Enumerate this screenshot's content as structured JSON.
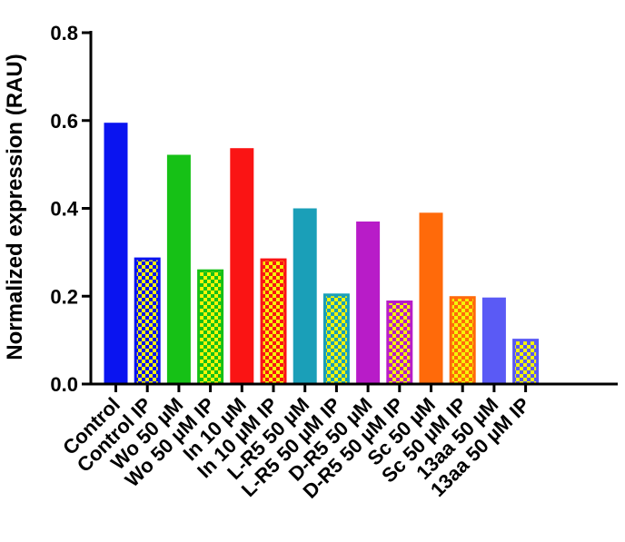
{
  "chart_data": {
    "type": "bar",
    "ylabel": "Normalized expression (RAU)",
    "xlabel": "",
    "ylim": [
      0,
      0.8
    ],
    "yticks": [
      0.0,
      0.2,
      0.4,
      0.6,
      0.8
    ],
    "ytick_labels": [
      "0.0",
      "0.2",
      "0.4",
      "0.6",
      "0.8"
    ],
    "categories": [
      "Control",
      "Control IP",
      "Wo 50 µM",
      "Wo 50 µM IP",
      "In 10 µM",
      "In 10 µM IP",
      "L-R5 50 µM",
      "L-R5 50 µM IP",
      "D-R5 50 µM",
      "D-R5 50 µM IP",
      "Sc 50 µM",
      "Sc 50 µM IP",
      "13aa 50 µM",
      "13aa 50 µM IP"
    ],
    "values": [
      0.595,
      0.285,
      0.522,
      0.258,
      0.537,
      0.283,
      0.4,
      0.203,
      0.37,
      0.187,
      0.39,
      0.197,
      0.197,
      0.1
    ],
    "colors": [
      "#0a14f0",
      "#0a14f0",
      "#16c116",
      "#16c116",
      "#fa1414",
      "#fa1414",
      "#1a9fb8",
      "#1a9fb8",
      "#b81cc8",
      "#b81cc8",
      "#ff6a0a",
      "#ff6a0a",
      "#5a5af5",
      "#5a5af5"
    ],
    "pattern": [
      "solid",
      "checker",
      "solid",
      "checker",
      "solid",
      "checker",
      "solid",
      "checker",
      "solid",
      "checker",
      "solid",
      "checker",
      "solid",
      "checker"
    ],
    "checker_color": "#f5f50a"
  }
}
